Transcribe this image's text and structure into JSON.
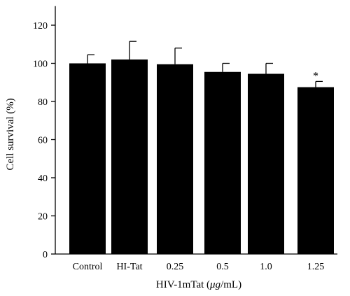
{
  "chart_data": {
    "type": "bar",
    "title": "",
    "xlabel": "HIV-1mTat (μg/mL)",
    "xlabel_parts": [
      "HIV-1mTat (",
      "μg",
      "/mL)"
    ],
    "ylabel": "Cell survival (%)",
    "ylim": [
      0,
      130
    ],
    "yticks": [
      0,
      20,
      40,
      60,
      80,
      100,
      120
    ],
    "categories": [
      "Control",
      "HI-Tat",
      "0.25",
      "0.5",
      "1.0",
      "1.25"
    ],
    "values": [
      100,
      102,
      99.5,
      95.5,
      94.5,
      87.5
    ],
    "errors": [
      4.5,
      9.5,
      8.5,
      4.5,
      5.5,
      3
    ],
    "annotations": [
      {
        "category": "1.25",
        "text": "*"
      }
    ],
    "grid": false,
    "legend": "none",
    "bar_color": "#000000",
    "axis_color": "#000000"
  }
}
